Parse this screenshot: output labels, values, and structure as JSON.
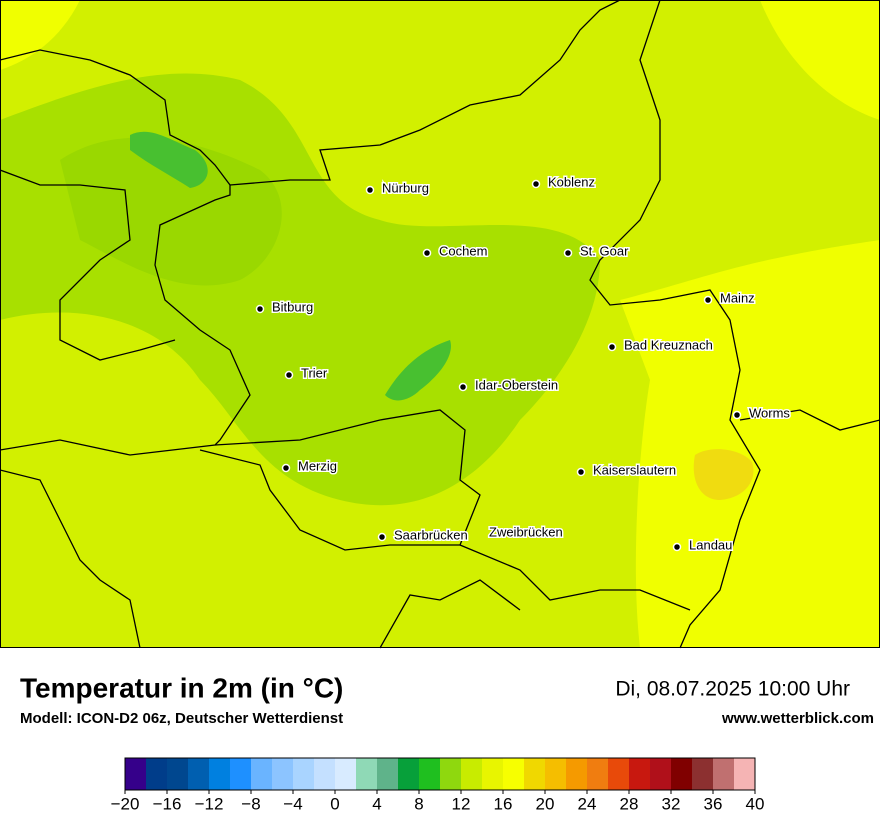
{
  "map": {
    "cities": [
      "Nürburg",
      "Koblenz",
      "Cochem",
      "St. Goar",
      "Mainz",
      "Bitburg",
      "Bad Kreuznach",
      "Trier",
      "Idar-Oberstein",
      "Worms",
      "Merzig",
      "Kaiserslautern",
      "Saarbrücken",
      "Zweibrücken",
      "Landau"
    ]
  },
  "footer": {
    "title": "Temperatur in 2m (in °C)",
    "subtitle": "Modell: ICON-D2 06z, Deutscher Wetterdienst",
    "date": "Di, 08.07.2025 10:00 Uhr",
    "website": "www.wetterblick.com"
  },
  "colorbar": {
    "range": [
      -20,
      40
    ],
    "colors": [
      "#35008a",
      "#003d8a",
      "#00478f",
      "#005fb0",
      "#0080e0",
      "#1e90ff",
      "#6ab4ff",
      "#8cc4ff",
      "#a9d4ff",
      "#c4e0ff",
      "#d8ebff",
      "#8fd9b6",
      "#5fb38a",
      "#07a03a",
      "#1fbf1f",
      "#8fd80e",
      "#c8ec00",
      "#e8f500",
      "#f7ff00",
      "#f0d800",
      "#f5be00",
      "#f59a00",
      "#f07d10",
      "#e84a0a",
      "#c8180f",
      "#b0101a",
      "#800000",
      "#8c3030",
      "#c07070",
      "#f5b4b4"
    ],
    "ticks": [
      {
        "value": -20,
        "label": "−20"
      },
      {
        "value": -16,
        "label": "−16"
      },
      {
        "value": -12,
        "label": "−12"
      },
      {
        "value": -8,
        "label": "−8"
      },
      {
        "value": -4,
        "label": "−4"
      },
      0,
      4,
      8,
      12,
      16,
      20,
      24,
      28,
      32,
      36,
      40
    ]
  }
}
